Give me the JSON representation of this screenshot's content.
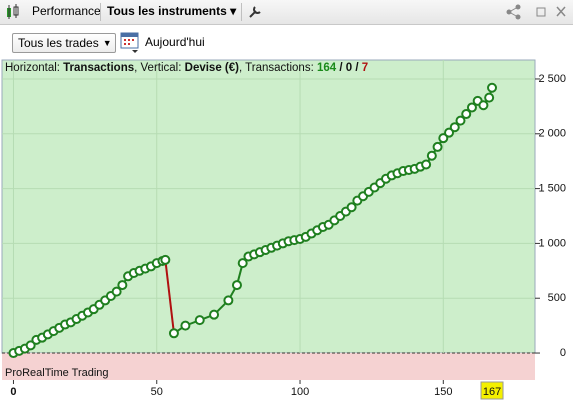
{
  "toolbar": {
    "tab": "Performance",
    "instruments": "Tous les instruments"
  },
  "filter": {
    "trades": "Tous les trades",
    "date": "Aujourd'hui"
  },
  "info": {
    "h_label": "Horizontal:",
    "h_value": "Transactions",
    "v_label": ", Vertical:",
    "v_value": "Devise (€)",
    "t_label": ", Transactions:",
    "wins": 164,
    "sep": "/",
    "even": 0,
    "losses": 7
  },
  "footer": "ProRealTime Trading",
  "chart_data": {
    "type": "line",
    "color": "#1f7f1f",
    "down_color": "#b01010",
    "grid": true,
    "x": [
      0,
      2,
      4,
      6,
      8,
      10,
      12,
      14,
      16,
      18,
      20,
      22,
      24,
      26,
      28,
      30,
      32,
      34,
      36,
      38,
      40,
      42,
      44,
      46,
      48,
      50,
      52,
      53,
      56,
      60,
      65,
      70,
      75,
      78,
      80,
      82,
      84,
      86,
      88,
      90,
      92,
      94,
      96,
      98,
      100,
      102,
      104,
      106,
      108,
      110,
      112,
      114,
      116,
      118,
      120,
      122,
      124,
      126,
      128,
      130,
      132,
      134,
      136,
      138,
      140,
      142,
      144,
      146,
      148,
      150,
      152,
      154,
      156,
      158,
      160,
      162,
      164,
      166,
      167
    ],
    "values": [
      0,
      20,
      40,
      70,
      120,
      140,
      170,
      200,
      230,
      260,
      280,
      310,
      340,
      370,
      400,
      440,
      480,
      520,
      560,
      620,
      700,
      730,
      750,
      770,
      790,
      820,
      840,
      850,
      180,
      250,
      300,
      350,
      480,
      620,
      820,
      880,
      900,
      920,
      940,
      960,
      980,
      1000,
      1020,
      1030,
      1040,
      1060,
      1090,
      1120,
      1150,
      1170,
      1210,
      1250,
      1290,
      1330,
      1390,
      1430,
      1470,
      1510,
      1550,
      1590,
      1620,
      1640,
      1660,
      1670,
      1680,
      1700,
      1720,
      1800,
      1880,
      1960,
      2010,
      2060,
      2120,
      2180,
      2240,
      2300,
      2260,
      2330,
      2420
    ],
    "xlim": [
      -4,
      182
    ],
    "ylim": [
      -246,
      2673
    ],
    "xticks": [
      0,
      50,
      100,
      150
    ],
    "current_x": 167,
    "yticks": [
      0,
      500,
      {
        "value": 1000,
        "label": "1 000"
      },
      {
        "value": 1500,
        "label": "1 500"
      },
      {
        "value": 2000,
        "label": "2 000"
      },
      {
        "value": 2500,
        "label": "2 500"
      }
    ]
  }
}
